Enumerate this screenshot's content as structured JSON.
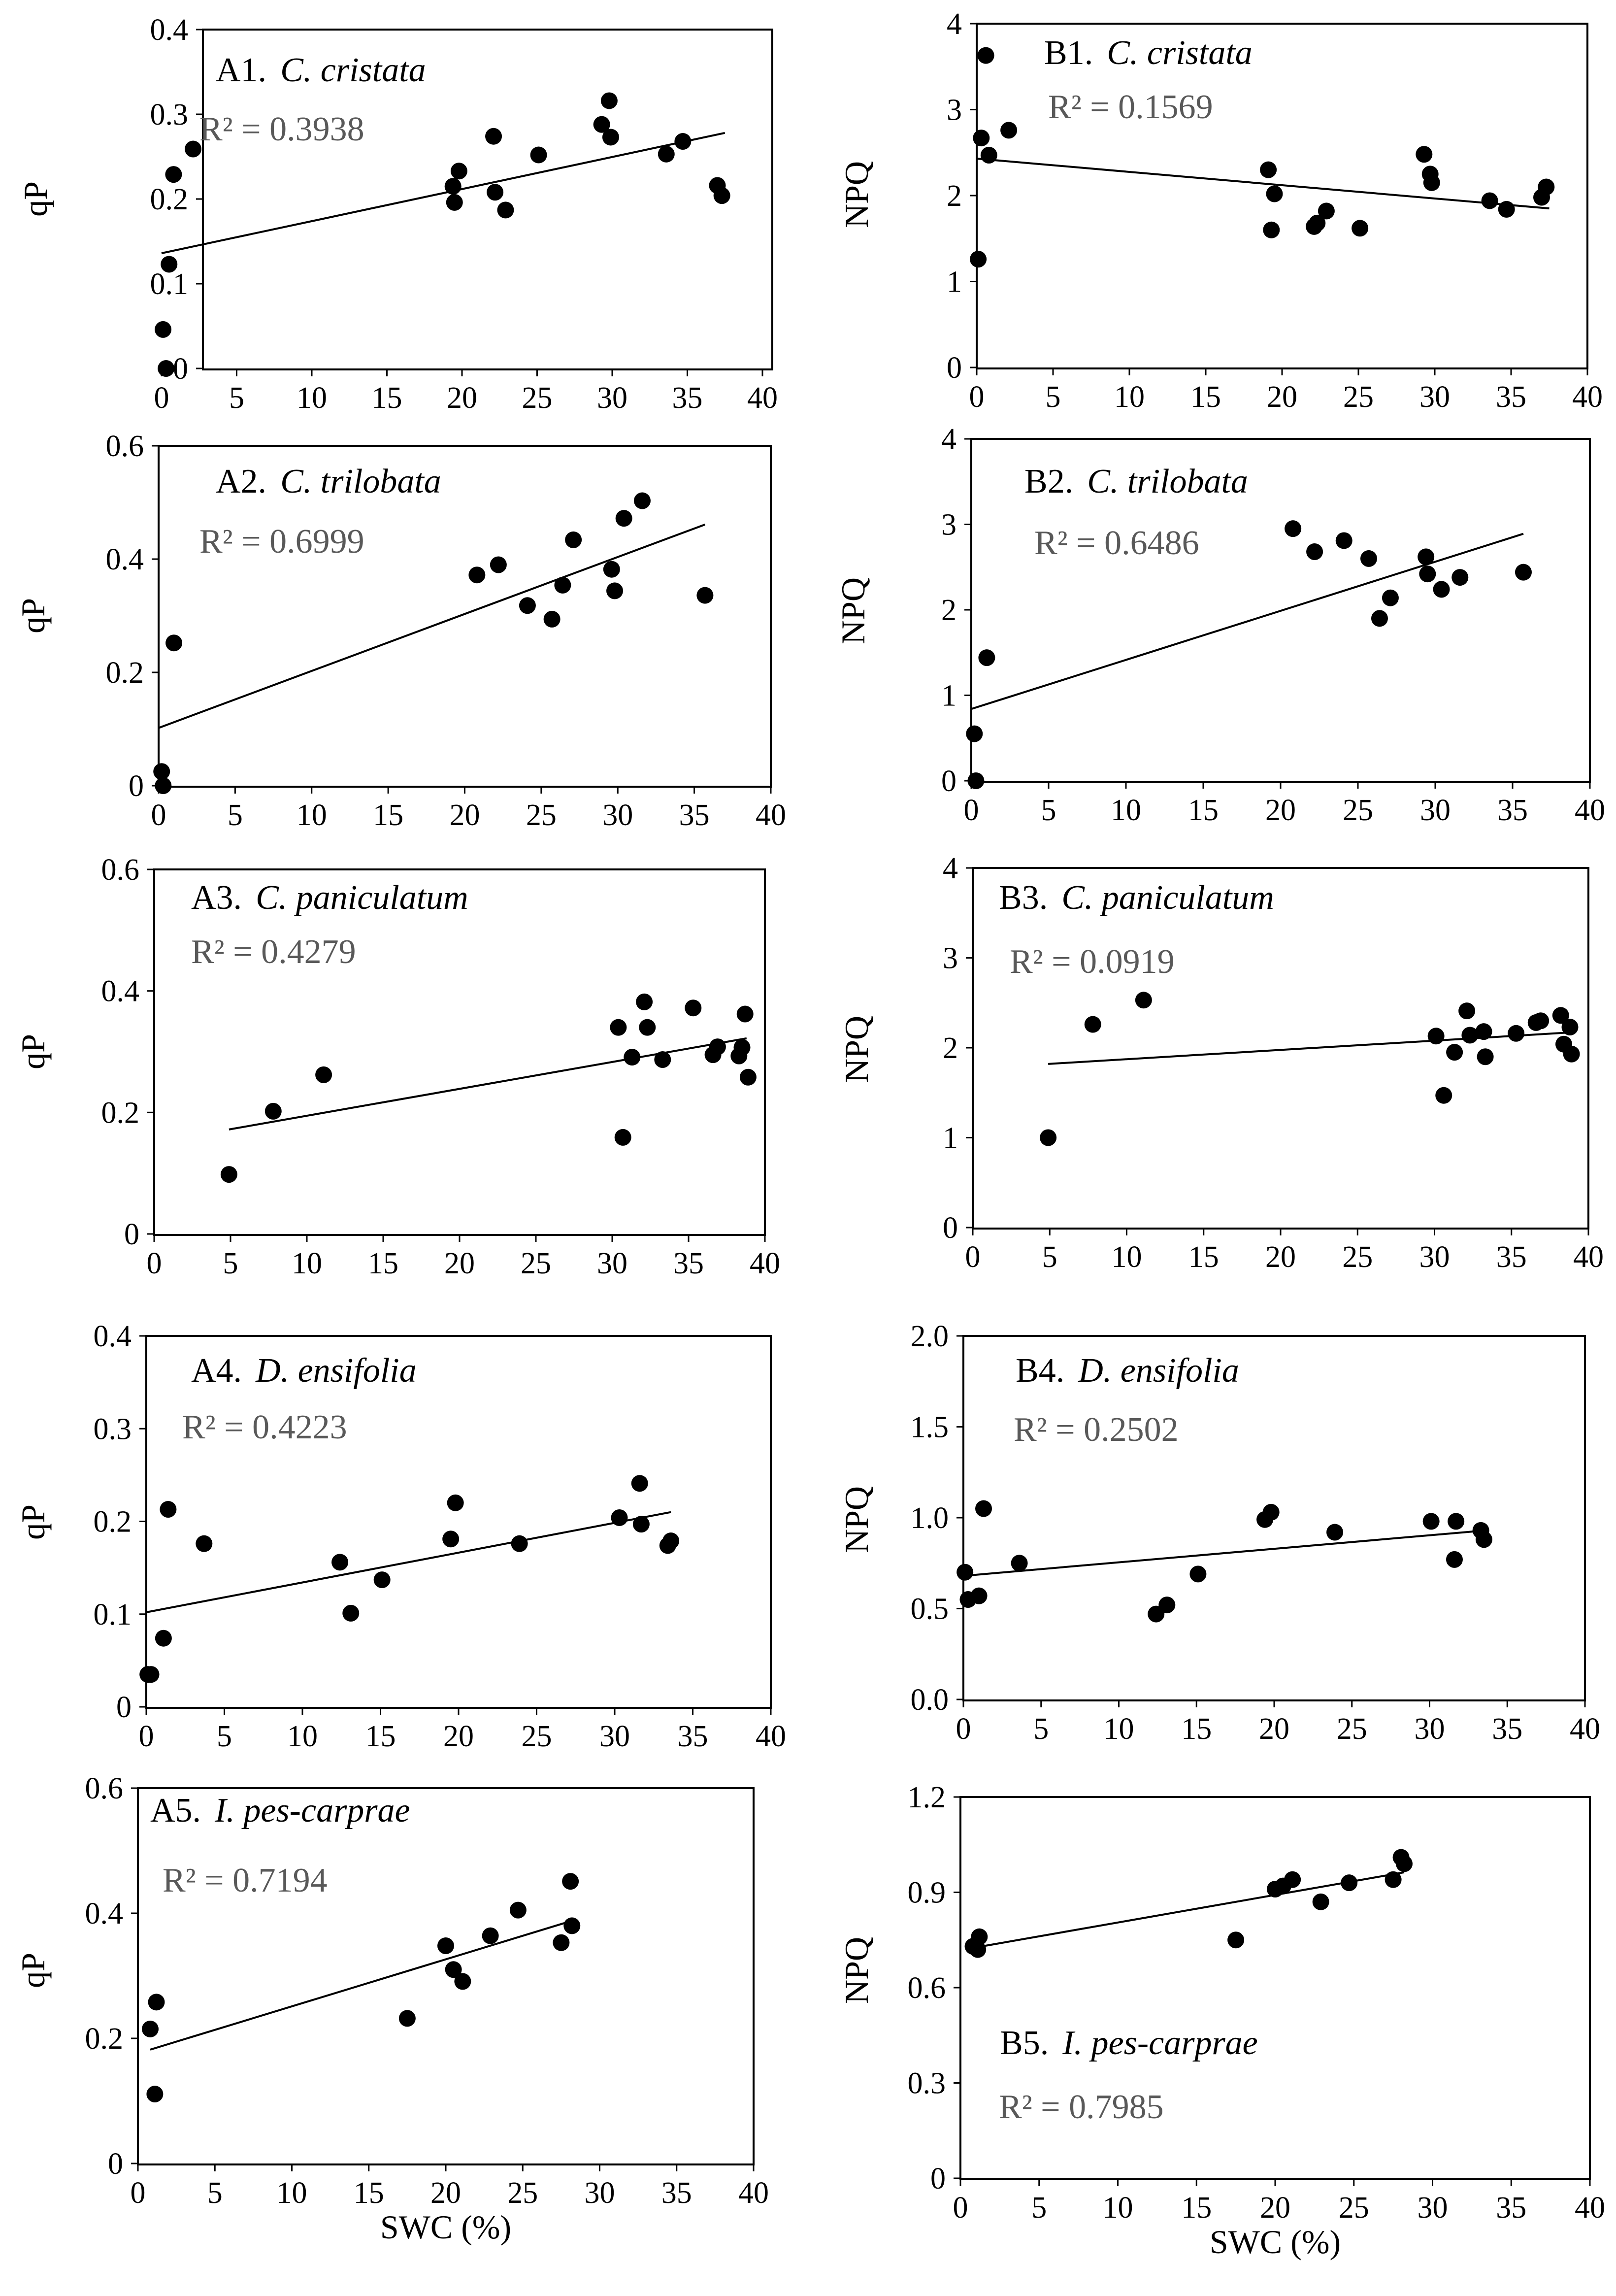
{
  "chart_data": [
    {
      "id": "A1",
      "type": "scatter",
      "title_id": "A1.",
      "title_species": "C. cristata",
      "r2_label": "R² = 0.3938",
      "ylabel": "qP",
      "xlabel": "",
      "xlim": [
        0,
        40
      ],
      "ylim": [
        0,
        0.4
      ],
      "xticks": [
        "0",
        "5",
        "10",
        "15",
        "20",
        "25",
        "30",
        "35",
        "40"
      ],
      "yticks": [
        "0",
        "0.1",
        "0.2",
        "0.3",
        "0.4"
      ],
      "trend": {
        "x": [
          0,
          37.5
        ],
        "y": [
          0.136,
          0.278
        ]
      },
      "points": {
        "x": [
          0.1,
          0.3,
          0.5,
          0.8,
          2.1,
          19.4,
          19.5,
          19.8,
          22.1,
          22.2,
          22.9,
          25.1,
          29.3,
          29.8,
          29.9,
          33.6,
          34.7,
          37.0,
          37.3
        ],
        "y": [
          0.046,
          0,
          0.123,
          0.229,
          0.259,
          0.215,
          0.196,
          0.233,
          0.274,
          0.208,
          0.187,
          0.252,
          0.288,
          0.316,
          0.273,
          0.253,
          0.268,
          0.216,
          0.204
        ]
      }
    },
    {
      "id": "B1",
      "type": "scatter",
      "title_id": "B1.",
      "title_species": "C. cristata",
      "r2_label": "R² = 0.1569",
      "ylabel": "NPQ",
      "xlabel": "",
      "xlim": [
        0,
        40
      ],
      "ylim": [
        0,
        4
      ],
      "xticks": [
        "0",
        "5",
        "10",
        "15",
        "20",
        "25",
        "30",
        "35",
        "40"
      ],
      "yticks": [
        "0",
        "1",
        "2",
        "3",
        "4"
      ],
      "trend": {
        "x": [
          0,
          37.5
        ],
        "y": [
          2.43,
          1.85
        ]
      },
      "points": {
        "x": [
          0.1,
          0.3,
          0.6,
          0.8,
          2.1,
          19.1,
          19.3,
          19.5,
          22.1,
          22.3,
          22.9,
          25.1,
          29.3,
          29.7,
          29.8,
          33.6,
          34.7,
          37.0,
          37.3
        ],
        "y": [
          1.26,
          2.67,
          3.63,
          2.47,
          2.76,
          2.3,
          1.6,
          2.02,
          1.64,
          1.68,
          1.82,
          1.62,
          2.48,
          2.25,
          2.15,
          1.94,
          1.84,
          1.98,
          2.1
        ]
      }
    },
    {
      "id": "A2",
      "type": "scatter",
      "title_id": "A2.",
      "title_species": "C. trilobata",
      "r2_label": "R² = 0.6999",
      "ylabel": "qP",
      "xlabel": "",
      "xlim": [
        0,
        40
      ],
      "ylim": [
        0,
        0.6
      ],
      "xticks": [
        "0",
        "5",
        "10",
        "15",
        "20",
        "25",
        "30",
        "35",
        "40"
      ],
      "yticks": [
        "0",
        "0.2",
        "0.4",
        "0.6"
      ],
      "trend": {
        "x": [
          0,
          35.7
        ],
        "y": [
          0.102,
          0.461
        ]
      },
      "points": {
        "x": [
          0.2,
          0.3,
          1.0,
          20.8,
          22.2,
          24.1,
          25.7,
          26.4,
          27.1,
          29.6,
          29.8,
          30.4,
          31.6,
          35.7
        ],
        "y": [
          0.025,
          0,
          0.252,
          0.372,
          0.39,
          0.318,
          0.294,
          0.354,
          0.434,
          0.382,
          0.344,
          0.472,
          0.503,
          0.336
        ]
      }
    },
    {
      "id": "B2",
      "type": "scatter",
      "title_id": "B2.",
      "title_species": "C. trilobata",
      "r2_label": "R² = 0.6486",
      "ylabel": "NPQ",
      "xlabel": "",
      "xlim": [
        0,
        40
      ],
      "ylim": [
        0,
        4
      ],
      "xticks": [
        "0",
        "5",
        "10",
        "15",
        "20",
        "25",
        "30",
        "35",
        "40"
      ],
      "yticks": [
        "0",
        "1",
        "2",
        "3",
        "4"
      ],
      "trend": {
        "x": [
          0,
          35.7
        ],
        "y": [
          0.84,
          2.89
        ]
      },
      "points": {
        "x": [
          0.2,
          0.3,
          1.0,
          20.8,
          22.2,
          24.1,
          25.7,
          26.4,
          27.1,
          29.4,
          29.5,
          30.4,
          31.6,
          35.7
        ],
        "y": [
          0.55,
          0,
          1.44,
          2.95,
          2.68,
          2.81,
          2.6,
          1.9,
          2.14,
          2.62,
          2.42,
          2.24,
          2.38,
          2.44
        ]
      }
    },
    {
      "id": "A3",
      "type": "scatter",
      "title_id": "A3.",
      "title_species": "C.  paniculatum",
      "r2_label": "R² = 0.4279",
      "ylabel": "qP",
      "xlabel": "",
      "xlim": [
        0,
        40
      ],
      "ylim": [
        0,
        0.6
      ],
      "xticks": [
        "0",
        "5",
        "10",
        "15",
        "20",
        "25",
        "30",
        "35",
        "40"
      ],
      "yticks": [
        "0",
        "0.2",
        "0.4",
        "0.6"
      ],
      "trend": {
        "x": [
          4.9,
          38.8
        ],
        "y": [
          0.172,
          0.322
        ]
      },
      "points": {
        "x": [
          4.9,
          7.8,
          11.1,
          30.4,
          30.7,
          31.3,
          32.1,
          32.3,
          33.3,
          35.3,
          36.6,
          36.9,
          38.3,
          38.5,
          38.7,
          38.9
        ],
        "y": [
          0.098,
          0.202,
          0.262,
          0.34,
          0.159,
          0.291,
          0.382,
          0.34,
          0.287,
          0.372,
          0.295,
          0.308,
          0.293,
          0.307,
          0.362,
          0.258
        ]
      }
    },
    {
      "id": "B3",
      "type": "scatter",
      "title_id": "B3.",
      "title_species": "C.  paniculatum",
      "r2_label": "R² = 0.0919",
      "ylabel": "NPQ",
      "xlabel": "",
      "xlim": [
        0,
        40
      ],
      "ylim": [
        0,
        4
      ],
      "xticks": [
        "0",
        "5",
        "10",
        "15",
        "20",
        "25",
        "30",
        "35",
        "40"
      ],
      "yticks": [
        "0",
        "1",
        "2",
        "3",
        "4"
      ],
      "trend": {
        "x": [
          4.9,
          38.8
        ],
        "y": [
          1.82,
          2.17
        ]
      },
      "points": {
        "x": [
          4.9,
          7.8,
          11.1,
          30.1,
          30.6,
          31.3,
          32.1,
          32.3,
          33.2,
          33.3,
          35.3,
          36.6,
          36.9,
          38.2,
          38.4,
          38.8,
          38.9
        ],
        "y": [
          1.0,
          2.26,
          2.53,
          2.13,
          1.47,
          1.95,
          2.41,
          2.14,
          2.18,
          1.9,
          2.16,
          2.28,
          2.3,
          2.36,
          2.04,
          2.23,
          1.93
        ]
      }
    },
    {
      "id": "A4",
      "type": "scatter",
      "title_id": "A4.",
      "title_species": "D. ensifolia",
      "r2_label": "R² = 0.4223",
      "ylabel": "qP",
      "xlabel": "",
      "xlim": [
        0,
        40
      ],
      "ylim": [
        0,
        0.4
      ],
      "xticks": [
        "0",
        "5",
        "10",
        "15",
        "20",
        "25",
        "30",
        "35",
        "40"
      ],
      "yticks": [
        "0",
        "0.1",
        "0.2",
        "0.3",
        "0.4"
      ],
      "trend": {
        "x": [
          0,
          33.6
        ],
        "y": [
          0.102,
          0.21
        ]
      },
      "points": {
        "x": [
          0.1,
          0.3,
          1.1,
          1.4,
          3.7,
          12.4,
          13.1,
          15.1,
          19.5,
          19.8,
          23.9,
          30.3,
          31.6,
          31.7,
          33.4,
          33.6
        ],
        "y": [
          0.035,
          0.035,
          0.074,
          0.213,
          0.176,
          0.156,
          0.101,
          0.137,
          0.181,
          0.22,
          0.176,
          0.204,
          0.241,
          0.197,
          0.174,
          0.179
        ]
      }
    },
    {
      "id": "B4",
      "type": "scatter",
      "title_id": "B4.",
      "title_species": "D. ensifolia",
      "r2_label": "R² = 0.2502",
      "ylabel": "NPQ",
      "xlabel": "",
      "xlim": [
        0,
        40
      ],
      "ylim": [
        0,
        2.0
      ],
      "xticks": [
        "0",
        "5",
        "10",
        "15",
        "20",
        "25",
        "30",
        "35",
        "40"
      ],
      "yticks": [
        "0.0",
        "0.5",
        "1.0",
        "1.5",
        "2.0"
      ],
      "trend": {
        "x": [
          0,
          33.6
        ],
        "y": [
          0.68,
          0.93
        ]
      },
      "points": {
        "x": [
          0.1,
          0.3,
          1.0,
          1.3,
          3.6,
          12.4,
          13.1,
          15.1,
          19.4,
          19.8,
          23.9,
          30.1,
          31.6,
          31.7,
          33.3,
          33.5
        ],
        "y": [
          0.7,
          0.55,
          0.57,
          1.05,
          0.75,
          0.47,
          0.52,
          0.69,
          0.99,
          1.03,
          0.92,
          0.98,
          0.77,
          0.98,
          0.93,
          0.88
        ]
      }
    },
    {
      "id": "A5",
      "type": "scatter",
      "title_id": "A5.",
      "title_species": "I. pes-carprae",
      "r2_label": "R² = 0.7194",
      "ylabel": "qP",
      "xlabel": "SWC (%)",
      "xlim": [
        0,
        40
      ],
      "ylim": [
        0,
        0.6
      ],
      "xticks": [
        "0",
        "5",
        "10",
        "15",
        "20",
        "25",
        "30",
        "35",
        "40"
      ],
      "yticks": [
        "0",
        "0.2",
        "0.4",
        "0.6"
      ],
      "trend": {
        "x": [
          0.8,
          28.2
        ],
        "y": [
          0.182,
          0.388
        ]
      },
      "points": {
        "x": [
          0.8,
          1.1,
          1.2,
          17.5,
          20.0,
          20.5,
          21.1,
          22.9,
          24.7,
          27.5,
          28.1,
          28.2
        ],
        "y": [
          0.215,
          0.111,
          0.258,
          0.232,
          0.348,
          0.31,
          0.291,
          0.364,
          0.405,
          0.353,
          0.451,
          0.38
        ]
      }
    },
    {
      "id": "B5",
      "type": "scatter",
      "title_id": "B5.",
      "title_species": "I. pes-carprae",
      "r2_label": "R² = 0.7985",
      "ylabel": "NPQ",
      "xlabel": "SWC (%)",
      "xlim": [
        0,
        40
      ],
      "ylim": [
        0,
        1.2
      ],
      "xticks": [
        "0",
        "5",
        "10",
        "15",
        "20",
        "25",
        "30",
        "35",
        "40"
      ],
      "yticks": [
        "0",
        "0.3",
        "0.6",
        "0.9",
        "1.2"
      ],
      "trend": {
        "x": [
          0.8,
          28.2
        ],
        "y": [
          0.725,
          0.963
        ]
      },
      "points": {
        "x": [
          0.8,
          1.1,
          1.2,
          17.5,
          20.0,
          20.5,
          21.1,
          22.9,
          24.7,
          27.5,
          28.0,
          28.2
        ],
        "y": [
          0.73,
          0.72,
          0.76,
          0.75,
          0.91,
          0.92,
          0.94,
          0.87,
          0.93,
          0.94,
          1.01,
          0.99
        ]
      }
    }
  ]
}
